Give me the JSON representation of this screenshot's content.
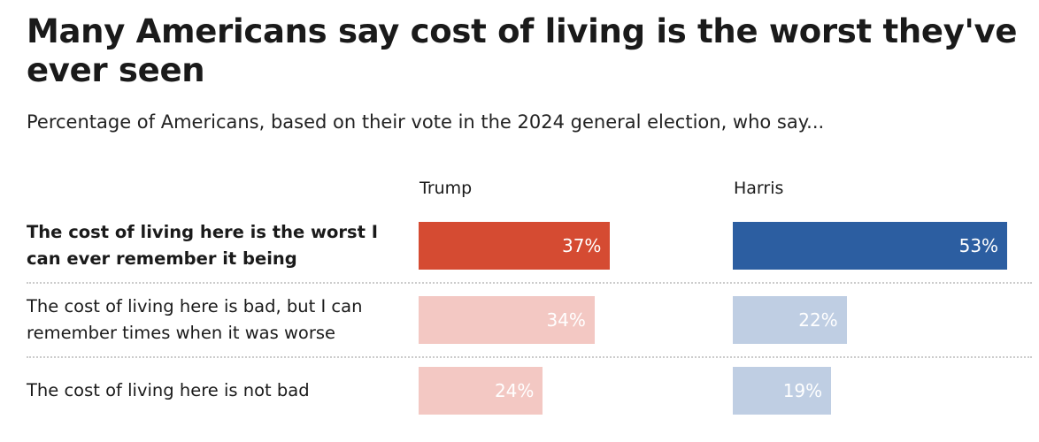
{
  "title": "Many Americans say cost of living is the worst they've ever seen",
  "subtitle": "Percentage of Americans, based on their vote in the 2024 general election, who say...",
  "colors": {
    "trump_strong": "#d54b32",
    "trump_light": "#f3c8c3",
    "harris_strong": "#2c5ea1",
    "harris_light": "#bfcee3"
  },
  "chart_data": {
    "type": "bar",
    "title": "Many Americans say cost of living is the worst they've ever seen",
    "categories": [
      "The cost of living here is the worst I can ever remember it being",
      "The cost of living here is bad, but I can remember times when it was worse",
      "The cost of living here is not bad"
    ],
    "series": [
      {
        "name": "Trump",
        "values": [
          37,
          34,
          24
        ],
        "labels": [
          "37%",
          "34%",
          "24%"
        ]
      },
      {
        "name": "Harris",
        "values": [
          53,
          22,
          19
        ],
        "labels": [
          "53%",
          "22%",
          "19%"
        ]
      }
    ],
    "xlim": [
      0,
      100
    ]
  }
}
